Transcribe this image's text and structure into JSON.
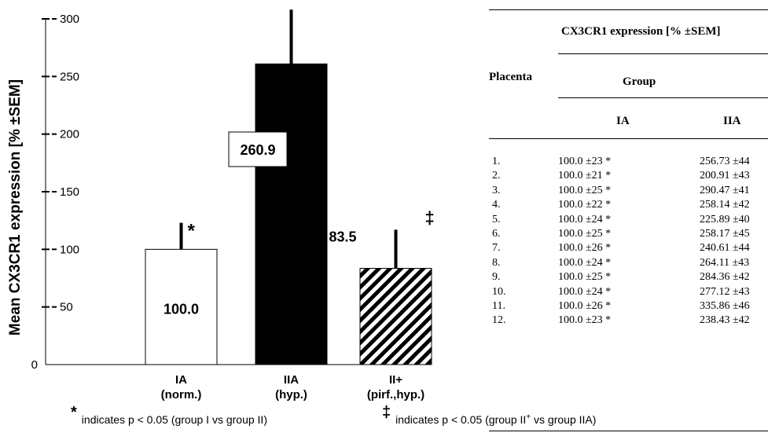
{
  "chart_data": {
    "type": "bar",
    "ylabel": "Mean CX3CR1 expression [% ±SEM]",
    "ylim": [
      0,
      300
    ],
    "yticks": [
      0,
      50,
      100,
      150,
      200,
      250,
      300
    ],
    "categories": [
      {
        "name": "IA",
        "sub": "(norm.)"
      },
      {
        "name": "IIA",
        "sub": "(hyp.)"
      },
      {
        "name": "II+",
        "sub": "(pirf.,hyp.)"
      }
    ],
    "values": [
      100.0,
      260.9,
      83.5
    ],
    "value_labels": [
      "100.0",
      "260.9",
      "83.5"
    ],
    "error_tops": [
      123,
      308,
      117
    ],
    "fills": [
      "white",
      "black",
      "hatched"
    ],
    "significance": [
      "*",
      "",
      "‡"
    ],
    "grid": false,
    "legend": "none"
  },
  "table": {
    "header": "CX3CR1 expression [% ±SEM]",
    "row_label": "Placenta",
    "group_label": "Group",
    "columns": [
      "IA",
      "IIA"
    ],
    "rows": [
      [
        "1.",
        "100.0 ±23 *",
        "256.73 ±44"
      ],
      [
        "2.",
        "100.0 ±21 *",
        "200.91 ±43"
      ],
      [
        "3.",
        "100.0 ±25 *",
        "290.47 ±41"
      ],
      [
        "4.",
        "100.0 ±22  *",
        "258.14 ±42"
      ],
      [
        "5.",
        "100.0 ±24 *",
        "225.89 ±40"
      ],
      [
        "6.",
        "100.0 ±25 *",
        "258.17 ±45"
      ],
      [
        "7.",
        "100.0 ±26 *",
        "240.61 ±44"
      ],
      [
        "8.",
        "100.0 ±24 *",
        "264.11 ±43"
      ],
      [
        "9.",
        "100.0 ±25 *",
        "284.36 ±42"
      ],
      [
        "10.",
        "100.0 ±24 *",
        "277.12 ±43"
      ],
      [
        "11.",
        "100.0 ±26 *",
        "335.86 ±46"
      ],
      [
        "12.",
        "100.0 ±23 *",
        "238.43 ±42"
      ]
    ]
  },
  "footnotes": {
    "star_symbol": "*",
    "star_text": "indicates p < 0.05 (group I vs group II)",
    "dagger_symbol": "‡",
    "dagger_text_before": "indicates p < 0.05 (group II",
    "dagger_sup": "+",
    "dagger_text_after": " vs group IIA)"
  }
}
